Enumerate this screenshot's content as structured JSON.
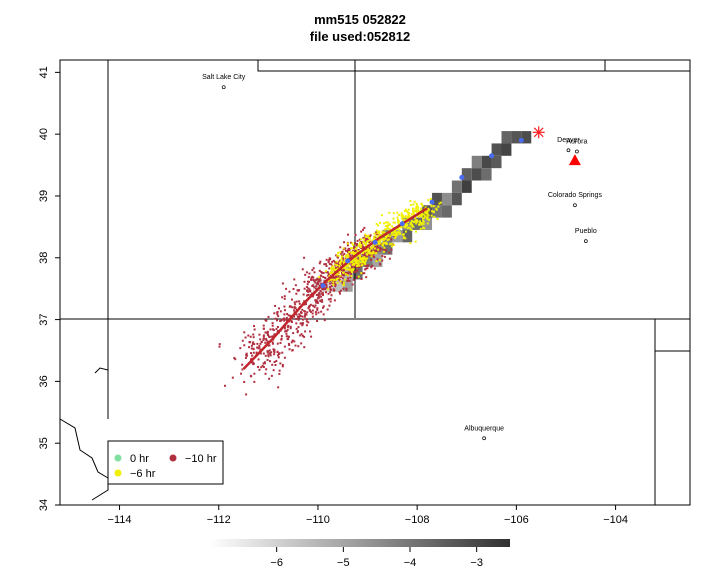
{
  "title": "mm515 052822",
  "subtitle": "file used:052812",
  "map": {
    "lon_range": [
      -115.2,
      -102.5
    ],
    "lat_range": [
      34,
      41.2
    ],
    "x_ticks": [
      -114,
      -112,
      -110,
      -108,
      -106,
      -104
    ],
    "y_ticks": [
      34,
      35,
      36,
      37,
      38,
      39,
      40,
      41
    ],
    "grid": false
  },
  "cities": [
    {
      "name": "Salt Lake City",
      "lon": -111.9,
      "lat": 40.76
    },
    {
      "name": "Denver",
      "lon": -104.95,
      "lat": 39.74
    },
    {
      "name": "Aurora",
      "lon": -104.78,
      "lat": 39.72
    },
    {
      "name": "Colorado Springs",
      "lon": -104.82,
      "lat": 38.85
    },
    {
      "name": "Pueblo",
      "lon": -104.6,
      "lat": 38.27
    },
    {
      "name": "Albuquerque",
      "lon": -106.65,
      "lat": 35.08
    }
  ],
  "markers": {
    "source_star": {
      "lon": -105.55,
      "lat": 40.03,
      "color": "#ff2020"
    },
    "triangle": {
      "lon": -104.82,
      "lat": 39.58,
      "color": "#ff0000"
    }
  },
  "trajectory": {
    "color": "#c0262c",
    "points": [
      [
        -111.5,
        36.2
      ],
      [
        -110.9,
        36.7
      ],
      [
        -110.3,
        37.25
      ],
      [
        -109.8,
        37.65
      ],
      [
        -109.3,
        38.0
      ],
      [
        -108.8,
        38.3
      ],
      [
        -108.2,
        38.6
      ],
      [
        -107.8,
        38.8
      ]
    ]
  },
  "hour_markers": {
    "color": "#4a6cf0",
    "points": [
      [
        -105.9,
        39.9
      ],
      [
        -106.5,
        39.65
      ],
      [
        -107.1,
        39.3
      ],
      [
        -107.7,
        38.9
      ],
      [
        -108.3,
        38.55
      ],
      [
        -108.85,
        38.25
      ],
      [
        -109.4,
        37.95
      ],
      [
        -109.9,
        37.55
      ]
    ]
  },
  "concentration_grid": {
    "cells": [
      [
        -105.9,
        39.85,
        -3.1
      ],
      [
        -106.1,
        39.85,
        -3.3
      ],
      [
        -106.3,
        39.85,
        -3.6
      ],
      [
        -106.3,
        39.65,
        -2.9
      ],
      [
        -106.5,
        39.65,
        -3.2
      ],
      [
        -106.5,
        39.45,
        -3.4
      ],
      [
        -106.7,
        39.45,
        -3.0
      ],
      [
        -106.7,
        39.25,
        -3.8
      ],
      [
        -106.9,
        39.45,
        -4.2
      ],
      [
        -106.9,
        39.25,
        -3.1
      ],
      [
        -107.1,
        39.25,
        -3.5
      ],
      [
        -107.1,
        39.05,
        -2.8
      ],
      [
        -107.3,
        39.05,
        -3.9
      ],
      [
        -107.3,
        38.85,
        -3.3
      ],
      [
        -107.5,
        38.85,
        -4.5
      ],
      [
        -107.5,
        38.65,
        -3.7
      ],
      [
        -107.7,
        38.85,
        -3.2
      ],
      [
        -107.7,
        38.65,
        -4.0
      ],
      [
        -107.9,
        38.65,
        -3.4
      ],
      [
        -107.9,
        38.45,
        -4.6
      ],
      [
        -108.1,
        38.45,
        -3.8
      ],
      [
        -108.3,
        38.45,
        -4.3
      ],
      [
        -108.3,
        38.25,
        -3.6
      ],
      [
        -108.5,
        38.25,
        -4.8
      ],
      [
        -108.7,
        38.25,
        -4.1
      ],
      [
        -108.7,
        38.05,
        -3.9
      ],
      [
        -108.9,
        38.05,
        -4.4
      ],
      [
        -108.9,
        37.85,
        -5.0
      ],
      [
        -109.1,
        37.85,
        -4.2
      ],
      [
        -109.3,
        37.85,
        -4.7
      ],
      [
        -109.3,
        37.65,
        -3.8
      ],
      [
        -109.5,
        37.65,
        -5.3
      ],
      [
        -109.5,
        37.45,
        -4.9
      ],
      [
        -109.7,
        37.45,
        -5.6
      ],
      [
        -109.9,
        37.45,
        -6.0
      ],
      [
        -110.1,
        37.45,
        -6.3
      ]
    ]
  },
  "scatter_seeds": {
    "minus10hr": 20220528,
    "minus6hr": 20220612
  },
  "legend": {
    "items": [
      {
        "label": "0 hr",
        "color": "#80e0a0"
      },
      {
        "label": "−10 hr",
        "color": "#b03040"
      },
      {
        "label": "−6 hr",
        "color": "#f0f000"
      }
    ]
  },
  "colorbar": {
    "range": [
      -7,
      -2.5
    ],
    "ticks": [
      -6,
      -5,
      -4,
      -3
    ]
  }
}
